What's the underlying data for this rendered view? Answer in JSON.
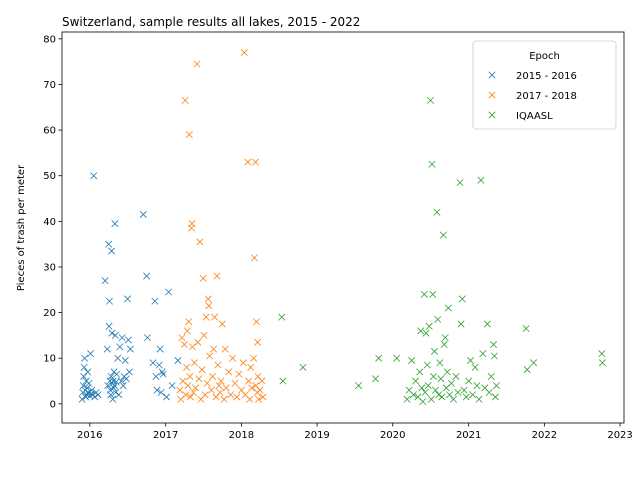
{
  "chart_data": {
    "type": "scatter",
    "title": "Switzerland, sample results all lakes, 2015 - 2022",
    "xlabel": "",
    "ylabel": "Pieces of trash per meter",
    "xlim": [
      "2015-08-20",
      "2023-01-20"
    ],
    "ylim": [
      -4.2,
      81.5
    ],
    "x_ticks": [
      "2016",
      "2017",
      "2018",
      "2019",
      "2020",
      "2021",
      "2022",
      "2023"
    ],
    "y_ticks": [
      0,
      10,
      20,
      30,
      40,
      50,
      60,
      70,
      80
    ],
    "grid": false,
    "marker": "x",
    "legend": {
      "title": "Epoch",
      "placement": "top-right"
    },
    "series": [
      {
        "name": "2015 - 2016",
        "color": "#1f77b4",
        "points": [
          [
            "2015-11-25",
            1.0
          ],
          [
            "2015-11-28",
            2.5
          ],
          [
            "2015-12-01",
            4.0
          ],
          [
            "2015-12-03",
            6.0
          ],
          [
            "2015-12-05",
            8.0
          ],
          [
            "2015-12-07",
            10.0
          ],
          [
            "2015-12-10",
            3.0
          ],
          [
            "2015-12-12",
            1.5
          ],
          [
            "2015-12-15",
            5.0
          ],
          [
            "2015-12-18",
            2.0
          ],
          [
            "2015-12-20",
            3.5
          ],
          [
            "2015-12-22",
            7.0
          ],
          [
            "2015-12-25",
            2.5
          ],
          [
            "2015-12-28",
            4.5
          ],
          [
            "2016-01-02",
            1.8
          ],
          [
            "2016-01-05",
            11.0
          ],
          [
            "2016-01-08",
            2.2
          ],
          [
            "2016-01-10",
            3.0
          ],
          [
            "2016-01-15",
            2.0
          ],
          [
            "2016-01-20",
            50.0
          ],
          [
            "2016-01-25",
            1.5
          ],
          [
            "2016-02-01",
            2.5
          ],
          [
            "2016-02-10",
            2.0
          ],
          [
            "2016-03-15",
            27.0
          ],
          [
            "2016-03-25",
            12.0
          ],
          [
            "2016-03-28",
            4.0
          ],
          [
            "2016-04-01",
            35.0
          ],
          [
            "2016-04-03",
            17.0
          ],
          [
            "2016-04-05",
            22.5
          ],
          [
            "2016-04-07",
            5.0
          ],
          [
            "2016-04-09",
            3.0
          ],
          [
            "2016-04-11",
            2.0
          ],
          [
            "2016-04-13",
            6.0
          ],
          [
            "2016-04-15",
            33.5
          ],
          [
            "2016-04-17",
            15.5
          ],
          [
            "2016-04-19",
            4.5
          ],
          [
            "2016-04-21",
            1.0
          ],
          [
            "2016-04-23",
            5.0
          ],
          [
            "2016-04-25",
            3.5
          ],
          [
            "2016-04-27",
            7.0
          ],
          [
            "2016-04-29",
            4.0
          ],
          [
            "2016-05-01",
            39.5
          ],
          [
            "2016-05-03",
            15.0
          ],
          [
            "2016-05-05",
            2.5
          ],
          [
            "2016-05-07",
            4.8
          ],
          [
            "2016-05-09",
            6.5
          ],
          [
            "2016-05-15",
            10.0
          ],
          [
            "2016-05-20",
            2.0
          ],
          [
            "2016-05-25",
            12.5
          ],
          [
            "2016-06-01",
            5.0
          ],
          [
            "2016-06-05",
            14.5
          ],
          [
            "2016-06-10",
            4.0
          ],
          [
            "2016-06-15",
            6.0
          ],
          [
            "2016-06-20",
            9.5
          ],
          [
            "2016-06-25",
            5.5
          ],
          [
            "2016-07-01",
            23.0
          ],
          [
            "2016-07-05",
            14.0
          ],
          [
            "2016-07-10",
            7.0
          ],
          [
            "2016-07-15",
            12.0
          ],
          [
            "2016-09-15",
            41.5
          ],
          [
            "2016-10-01",
            28.0
          ],
          [
            "2016-10-05",
            14.5
          ],
          [
            "2016-11-01",
            9.0
          ],
          [
            "2016-11-10",
            22.5
          ],
          [
            "2016-11-15",
            6.0
          ],
          [
            "2016-11-20",
            3.0
          ],
          [
            "2016-12-01",
            8.5
          ],
          [
            "2016-12-05",
            12.0
          ],
          [
            "2016-12-10",
            2.5
          ],
          [
            "2016-12-15",
            7.0
          ],
          [
            "2016-12-20",
            6.5
          ],
          [
            "2017-01-05",
            1.5
          ],
          [
            "2017-01-15",
            24.5
          ],
          [
            "2017-02-01",
            4.0
          ],
          [
            "2017-03-01",
            9.5
          ]
        ]
      },
      {
        "name": "2017 - 2018",
        "color": "#ff7f0e",
        "points": [
          [
            "2017-03-10",
            3.0
          ],
          [
            "2017-03-15",
            1.0
          ],
          [
            "2017-03-20",
            14.5
          ],
          [
            "2017-03-25",
            5.0
          ],
          [
            "2017-04-01",
            13.0
          ],
          [
            "2017-04-05",
            66.5
          ],
          [
            "2017-04-08",
            2.0
          ],
          [
            "2017-04-12",
            8.0
          ],
          [
            "2017-04-15",
            16.0
          ],
          [
            "2017-04-18",
            4.0
          ],
          [
            "2017-04-22",
            18.0
          ],
          [
            "2017-04-25",
            59.0
          ],
          [
            "2017-04-28",
            6.0
          ],
          [
            "2017-05-01",
            1.5
          ],
          [
            "2017-05-05",
            38.5
          ],
          [
            "2017-05-08",
            39.5
          ],
          [
            "2017-05-10",
            12.5
          ],
          [
            "2017-05-15",
            2.5
          ],
          [
            "2017-05-20",
            9.0
          ],
          [
            "2017-05-25",
            3.5
          ],
          [
            "2017-06-01",
            74.5
          ],
          [
            "2017-06-05",
            13.5
          ],
          [
            "2017-06-10",
            5.5
          ],
          [
            "2017-06-15",
            35.5
          ],
          [
            "2017-06-20",
            1.0
          ],
          [
            "2017-06-25",
            7.5
          ],
          [
            "2017-07-01",
            27.5
          ],
          [
            "2017-07-05",
            15.0
          ],
          [
            "2017-07-10",
            2.0
          ],
          [
            "2017-07-15",
            19.0
          ],
          [
            "2017-07-20",
            4.5
          ],
          [
            "2017-07-25",
            23.0
          ],
          [
            "2017-07-28",
            21.5
          ],
          [
            "2017-08-01",
            10.5
          ],
          [
            "2017-08-10",
            3.0
          ],
          [
            "2017-08-15",
            6.0
          ],
          [
            "2017-08-20",
            12.0
          ],
          [
            "2017-08-25",
            19.0
          ],
          [
            "2017-09-01",
            1.5
          ],
          [
            "2017-09-05",
            28.0
          ],
          [
            "2017-09-10",
            8.5
          ],
          [
            "2017-09-15",
            4.0
          ],
          [
            "2017-09-20",
            2.5
          ],
          [
            "2017-09-25",
            5.0
          ],
          [
            "2017-10-01",
            17.5
          ],
          [
            "2017-10-10",
            1.0
          ],
          [
            "2017-10-15",
            12.0
          ],
          [
            "2017-10-20",
            3.5
          ],
          [
            "2017-11-01",
            7.0
          ],
          [
            "2017-11-10",
            2.0
          ],
          [
            "2017-11-20",
            10.0
          ],
          [
            "2017-12-01",
            4.5
          ],
          [
            "2017-12-10",
            1.5
          ],
          [
            "2017-12-20",
            6.5
          ],
          [
            "2018-01-01",
            3.0
          ],
          [
            "2018-01-10",
            9.0
          ],
          [
            "2018-01-15",
            77.0
          ],
          [
            "2018-01-20",
            2.0
          ],
          [
            "2018-02-01",
            53.0
          ],
          [
            "2018-02-05",
            5.0
          ],
          [
            "2018-02-10",
            1.0
          ],
          [
            "2018-02-15",
            8.0
          ],
          [
            "2018-02-20",
            3.5
          ],
          [
            "2018-03-01",
            10.0
          ],
          [
            "2018-03-05",
            32.0
          ],
          [
            "2018-03-10",
            53.0
          ],
          [
            "2018-03-12",
            4.0
          ],
          [
            "2018-03-15",
            18.0
          ],
          [
            "2018-03-18",
            2.5
          ],
          [
            "2018-03-20",
            13.5
          ],
          [
            "2018-03-22",
            6.0
          ],
          [
            "2018-03-25",
            1.0
          ],
          [
            "2018-04-01",
            3.0
          ],
          [
            "2018-04-10",
            5.0
          ],
          [
            "2018-04-15",
            1.5
          ]
        ]
      },
      {
        "name": "IQAASL",
        "color": "#2ca02c",
        "points": [
          [
            "2018-07-15",
            19.0
          ],
          [
            "2018-07-20",
            5.0
          ],
          [
            "2018-10-25",
            8.0
          ],
          [
            "2019-07-20",
            4.0
          ],
          [
            "2019-10-10",
            5.5
          ],
          [
            "2019-10-25",
            10.0
          ],
          [
            "2020-01-20",
            10.0
          ],
          [
            "2020-03-10",
            1.0
          ],
          [
            "2020-03-20",
            3.0
          ],
          [
            "2020-04-01",
            9.5
          ],
          [
            "2020-04-10",
            2.0
          ],
          [
            "2020-04-20",
            5.0
          ],
          [
            "2020-05-01",
            1.5
          ],
          [
            "2020-05-10",
            7.0
          ],
          [
            "2020-05-15",
            16.0
          ],
          [
            "2020-05-20",
            3.5
          ],
          [
            "2020-05-25",
            0.5
          ],
          [
            "2020-06-01",
            24.0
          ],
          [
            "2020-06-05",
            2.5
          ],
          [
            "2020-06-10",
            15.5
          ],
          [
            "2020-06-15",
            8.5
          ],
          [
            "2020-06-20",
            4.0
          ],
          [
            "2020-06-25",
            17.0
          ],
          [
            "2020-07-01",
            66.5
          ],
          [
            "2020-07-05",
            1.0
          ],
          [
            "2020-07-08",
            52.5
          ],
          [
            "2020-07-12",
            24.0
          ],
          [
            "2020-07-15",
            6.0
          ],
          [
            "2020-07-20",
            11.5
          ],
          [
            "2020-07-25",
            3.0
          ],
          [
            "2020-08-01",
            42.0
          ],
          [
            "2020-08-05",
            18.5
          ],
          [
            "2020-08-10",
            2.0
          ],
          [
            "2020-08-15",
            9.0
          ],
          [
            "2020-08-20",
            5.5
          ],
          [
            "2020-08-25",
            1.5
          ],
          [
            "2020-09-01",
            37.0
          ],
          [
            "2020-09-05",
            13.0
          ],
          [
            "2020-09-10",
            14.5
          ],
          [
            "2020-09-15",
            3.5
          ],
          [
            "2020-09-20",
            7.0
          ],
          [
            "2020-09-25",
            21.0
          ],
          [
            "2020-10-01",
            2.0
          ],
          [
            "2020-10-10",
            4.5
          ],
          [
            "2020-10-20",
            1.0
          ],
          [
            "2020-11-01",
            6.0
          ],
          [
            "2020-11-10",
            2.5
          ],
          [
            "2020-11-20",
            48.5
          ],
          [
            "2020-11-25",
            17.5
          ],
          [
            "2020-12-01",
            23.0
          ],
          [
            "2020-12-10",
            3.0
          ],
          [
            "2020-12-20",
            1.5
          ],
          [
            "2021-01-01",
            5.0
          ],
          [
            "2021-01-10",
            9.5
          ],
          [
            "2021-01-20",
            2.0
          ],
          [
            "2021-02-01",
            8.0
          ],
          [
            "2021-02-10",
            4.0
          ],
          [
            "2021-02-20",
            1.0
          ],
          [
            "2021-03-01",
            49.0
          ],
          [
            "2021-03-10",
            11.0
          ],
          [
            "2021-03-20",
            3.5
          ],
          [
            "2021-04-01",
            17.5
          ],
          [
            "2021-04-10",
            2.5
          ],
          [
            "2021-04-20",
            6.0
          ],
          [
            "2021-05-01",
            13.0
          ],
          [
            "2021-05-05",
            10.5
          ],
          [
            "2021-05-10",
            1.5
          ],
          [
            "2021-05-15",
            4.0
          ],
          [
            "2021-10-05",
            16.5
          ],
          [
            "2021-10-10",
            7.5
          ],
          [
            "2021-11-10",
            9.0
          ],
          [
            "2022-10-05",
            11.0
          ],
          [
            "2022-10-08",
            9.0
          ]
        ]
      }
    ]
  }
}
